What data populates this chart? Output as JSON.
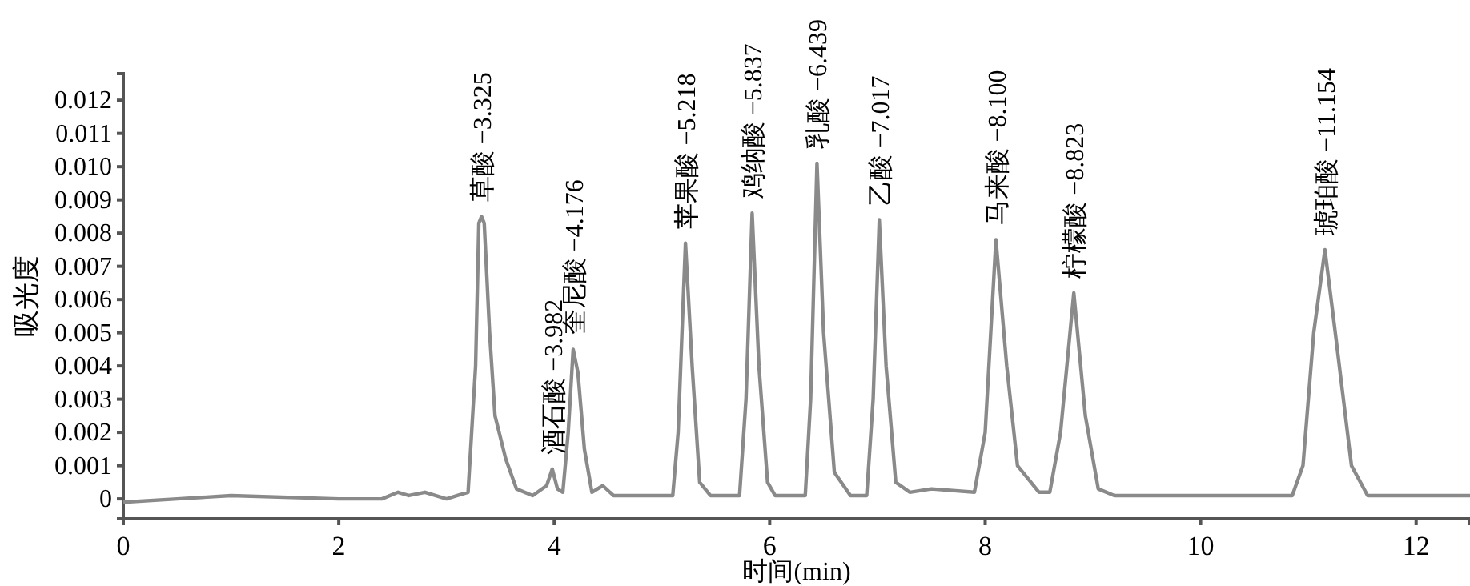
{
  "chart_data": {
    "type": "line",
    "xlabel": "时间(min)",
    "ylabel": "吸光度",
    "xlim": [
      0,
      12.5
    ],
    "ylim": [
      -0.0006,
      0.0128
    ],
    "xticks": [
      0,
      2,
      4,
      6,
      8,
      10,
      12
    ],
    "yticks": [
      0,
      0.001,
      0.002,
      0.003,
      0.004,
      0.005,
      0.006,
      0.007,
      0.008,
      0.009,
      {
        "value": 0.01,
        "label": "0.010"
      },
      0.011,
      0.012
    ],
    "grid": false,
    "marker": "none",
    "line_style": "solid",
    "series": [
      {
        "color": "#8a8a8a",
        "x": [
          0,
          0.5,
          1,
          2,
          2.4,
          2.55,
          2.65,
          2.8,
          3.0,
          3.1,
          3.2,
          3.27,
          3.3,
          3.325,
          3.35,
          3.4,
          3.45,
          3.55,
          3.65,
          3.8,
          3.93,
          3.982,
          4.03,
          4.08,
          4.13,
          4.176,
          4.22,
          4.28,
          4.35,
          4.45,
          4.55,
          5.1,
          5.15,
          5.218,
          5.28,
          5.35,
          5.45,
          5.72,
          5.78,
          5.837,
          5.9,
          5.98,
          6.05,
          6.33,
          6.38,
          6.439,
          6.5,
          6.6,
          6.75,
          6.9,
          6.96,
          7.017,
          7.08,
          7.17,
          7.3,
          7.5,
          7.9,
          8.0,
          8.1,
          8.2,
          8.3,
          8.5,
          8.6,
          8.7,
          8.823,
          8.93,
          9.05,
          9.2,
          10,
          10.85,
          10.95,
          11.05,
          11.154,
          11.25,
          11.4,
          11.55,
          12.5
        ],
        "values": [
          -0.0001,
          0,
          0.0001,
          0,
          0,
          0.0002,
          0.0001,
          0.0002,
          0,
          0.0001,
          0.0002,
          0.004,
          0.0083,
          0.0085,
          0.0083,
          0.005,
          0.0025,
          0.0012,
          0.0003,
          0.0001,
          0.0004,
          0.0009,
          0.0003,
          0.0002,
          0.002,
          0.0045,
          0.0038,
          0.0015,
          0.0002,
          0.0004,
          0.0001,
          0.0001,
          0.002,
          0.0077,
          0.004,
          0.0005,
          0.0001,
          0.0001,
          0.003,
          0.0086,
          0.004,
          0.0005,
          0.0001,
          0.0001,
          0.003,
          0.0101,
          0.005,
          0.0008,
          0.0001,
          0.0001,
          0.003,
          0.0084,
          0.004,
          0.0005,
          0.0002,
          0.0003,
          0.0002,
          0.002,
          0.0078,
          0.004,
          0.001,
          0.0002,
          0.0002,
          0.002,
          0.0062,
          0.0025,
          0.0003,
          0.0001,
          0.0001,
          0.0001,
          0.001,
          0.005,
          0.0075,
          0.005,
          0.001,
          0.0001,
          0.0001
        ]
      }
    ],
    "annotations": [
      {
        "text": "草酸 −3.325",
        "x": 3.325,
        "y": 0.0085
      },
      {
        "text": "酒石酸 −3.982",
        "x": 3.982,
        "y": 0.0009
      },
      {
        "text": "奎尼酸 −4.176",
        "x": 4.176,
        "y": 0.0045
      },
      {
        "text": "苹果酸 −5.218",
        "x": 5.218,
        "y": 0.0077
      },
      {
        "text": "鸡纳酸 −5.837",
        "x": 5.837,
        "y": 0.0086
      },
      {
        "text": "乳酸 −6.439",
        "x": 6.439,
        "y": 0.0101
      },
      {
        "text": "乙酸 −7.017",
        "x": 7.017,
        "y": 0.0084
      },
      {
        "text": "马来酸 −8.100",
        "x": 8.1,
        "y": 0.0078
      },
      {
        "text": "柠檬酸 −8.823",
        "x": 8.823,
        "y": 0.0062
      },
      {
        "text": "琥珀酸 −11.154",
        "x": 11.154,
        "y": 0.0075
      }
    ]
  }
}
